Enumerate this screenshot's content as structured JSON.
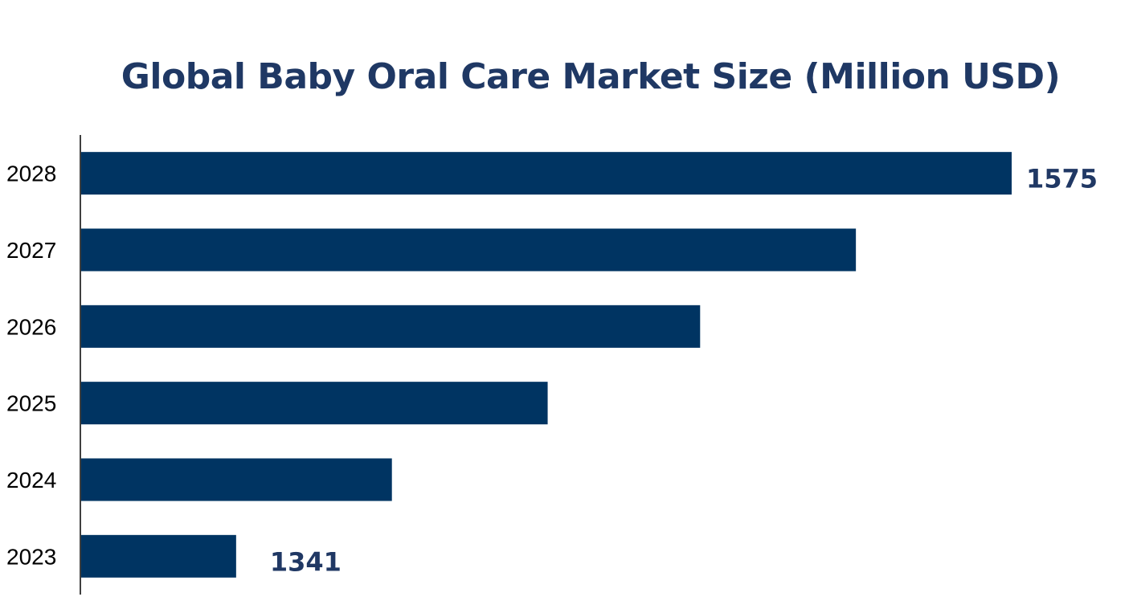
{
  "chart_data": {
    "type": "bar",
    "orientation": "horizontal",
    "title": "Global Baby Oral Care Market Size (Million USD)",
    "categories": [
      "2023",
      "2024",
      "2025",
      "2026",
      "2027",
      "2028"
    ],
    "values": [
      1341,
      1388,
      1435,
      1481,
      1528,
      1575
    ],
    "data_labels": {
      "2023": "1341",
      "2028": "1575"
    },
    "xlabel": "",
    "ylabel": "",
    "xlim": [
      1294,
      1575
    ],
    "grid": false,
    "legend": "none",
    "colors": {
      "bar": "#003462",
      "title": "#1f3864",
      "label": "#203864"
    }
  }
}
